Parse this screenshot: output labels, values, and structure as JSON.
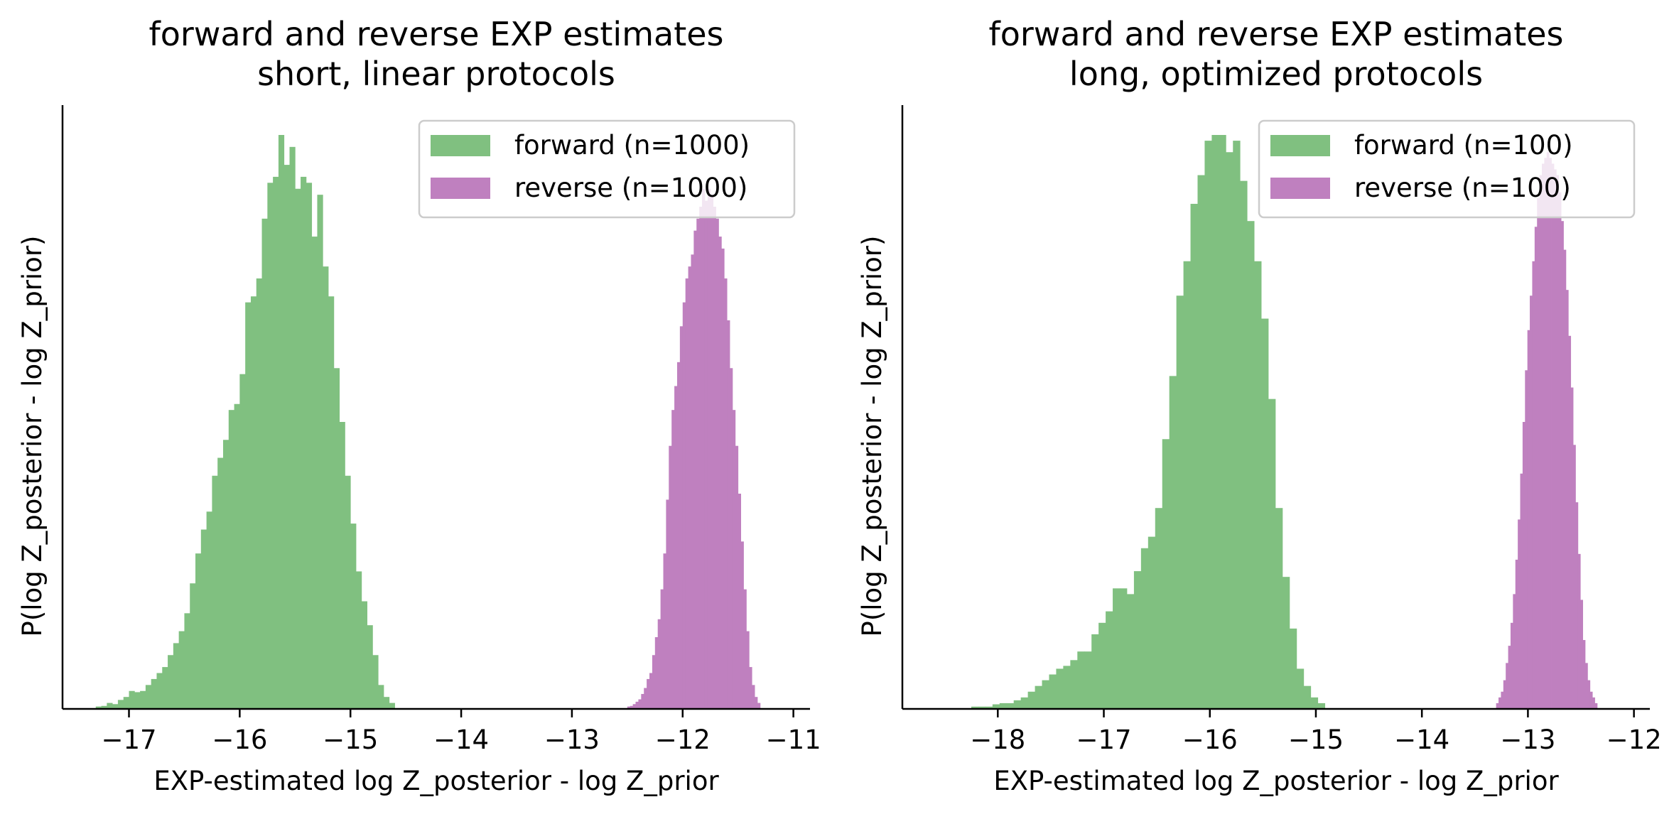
{
  "chart_data": [
    {
      "type": "histogram",
      "title": "forward and reverse EXP estimates",
      "subtitle": "short, linear protocols",
      "xlabel": "EXP-estimated log Z_posterior - log Z_prior",
      "ylabel": "P(log Z_posterior - log Z_prior)",
      "xlim": [
        -17.6,
        -10.85
      ],
      "xticks": [
        "−17",
        "−16",
        "−15",
        "−14",
        "−13",
        "−12",
        "−11"
      ],
      "xtick_values": [
        -17,
        -16,
        -15,
        -14,
        -13,
        -12,
        -11
      ],
      "yticks": "none",
      "legend_position": "upper right",
      "series": [
        {
          "name": "forward (n=1000)",
          "color": "#80c080",
          "bin_start": -17.3,
          "bin_width": 0.05,
          "densities": [
            0.004,
            0.005,
            0.01,
            0.008,
            0.015,
            0.02,
            0.03,
            0.028,
            0.03,
            0.04,
            0.05,
            0.06,
            0.07,
            0.09,
            0.11,
            0.13,
            0.16,
            0.21,
            0.26,
            0.3,
            0.33,
            0.39,
            0.42,
            0.45,
            0.5,
            0.51,
            0.56,
            0.68,
            0.69,
            0.72,
            0.82,
            0.88,
            0.89,
            0.96,
            0.91,
            0.94,
            0.87,
            0.89,
            0.88,
            0.79,
            0.86,
            0.74,
            0.69,
            0.57,
            0.48,
            0.39,
            0.31,
            0.23,
            0.18,
            0.14,
            0.09,
            0.04,
            0.02,
            0.01
          ]
        },
        {
          "name": "reverse (n=1000)",
          "color": "#bf80bf",
          "bin_start": -12.5,
          "bin_width": 0.025,
          "densities": [
            0.004,
            0.005,
            0.008,
            0.012,
            0.016,
            0.025,
            0.035,
            0.05,
            0.06,
            0.09,
            0.12,
            0.15,
            0.2,
            0.26,
            0.35,
            0.44,
            0.5,
            0.54,
            0.58,
            0.64,
            0.68,
            0.72,
            0.74,
            0.76,
            0.8,
            0.82,
            0.84,
            0.87,
            0.85,
            0.87,
            0.86,
            0.84,
            0.82,
            0.79,
            0.77,
            0.72,
            0.65,
            0.57,
            0.5,
            0.44,
            0.36,
            0.28,
            0.2,
            0.13,
            0.07,
            0.04,
            0.02,
            0.01
          ]
        }
      ]
    },
    {
      "type": "histogram",
      "title": "forward and reverse EXP estimates",
      "subtitle": "long, optimized protocols",
      "xlabel": "EXP-estimated log Z_posterior - log Z_prior",
      "ylabel": "P(log Z_posterior - log Z_prior)",
      "xlim": [
        -18.9,
        -11.85
      ],
      "xticks": [
        "−18",
        "−17",
        "−16",
        "−15",
        "−14",
        "−13",
        "−12"
      ],
      "xtick_values": [
        -18,
        -17,
        -16,
        -15,
        -14,
        -13,
        -12
      ],
      "yticks": "none",
      "legend_position": "upper right",
      "series": [
        {
          "name": "forward (n=100)",
          "color": "#80c080",
          "bin_start": -18.25,
          "bin_width": 0.0667,
          "densities": [
            0.004,
            0.004,
            0.004,
            0.008,
            0.01,
            0.01,
            0.015,
            0.02,
            0.03,
            0.04,
            0.05,
            0.06,
            0.07,
            0.075,
            0.085,
            0.1,
            0.1,
            0.13,
            0.15,
            0.17,
            0.21,
            0.21,
            0.2,
            0.24,
            0.28,
            0.3,
            0.35,
            0.47,
            0.58,
            0.72,
            0.78,
            0.88,
            0.93,
            0.99,
            1.0,
            1.0,
            0.97,
            0.99,
            0.92,
            0.85,
            0.78,
            0.68,
            0.54,
            0.35,
            0.23,
            0.14,
            0.07,
            0.04,
            0.02,
            0.01
          ]
        },
        {
          "name": "reverse (n=100)",
          "color": "#bf80bf",
          "bin_start": -13.3,
          "bin_width": 0.0227,
          "densities": [
            0.01,
            0.02,
            0.03,
            0.05,
            0.08,
            0.11,
            0.15,
            0.2,
            0.26,
            0.33,
            0.41,
            0.5,
            0.59,
            0.66,
            0.72,
            0.78,
            0.84,
            0.89,
            0.93,
            0.95,
            0.96,
            0.97,
            0.96,
            0.95,
            0.94,
            0.93,
            0.9,
            0.85,
            0.8,
            0.73,
            0.65,
            0.56,
            0.46,
            0.36,
            0.27,
            0.19,
            0.12,
            0.08,
            0.05,
            0.03,
            0.02,
            0.01
          ]
        }
      ]
    }
  ]
}
